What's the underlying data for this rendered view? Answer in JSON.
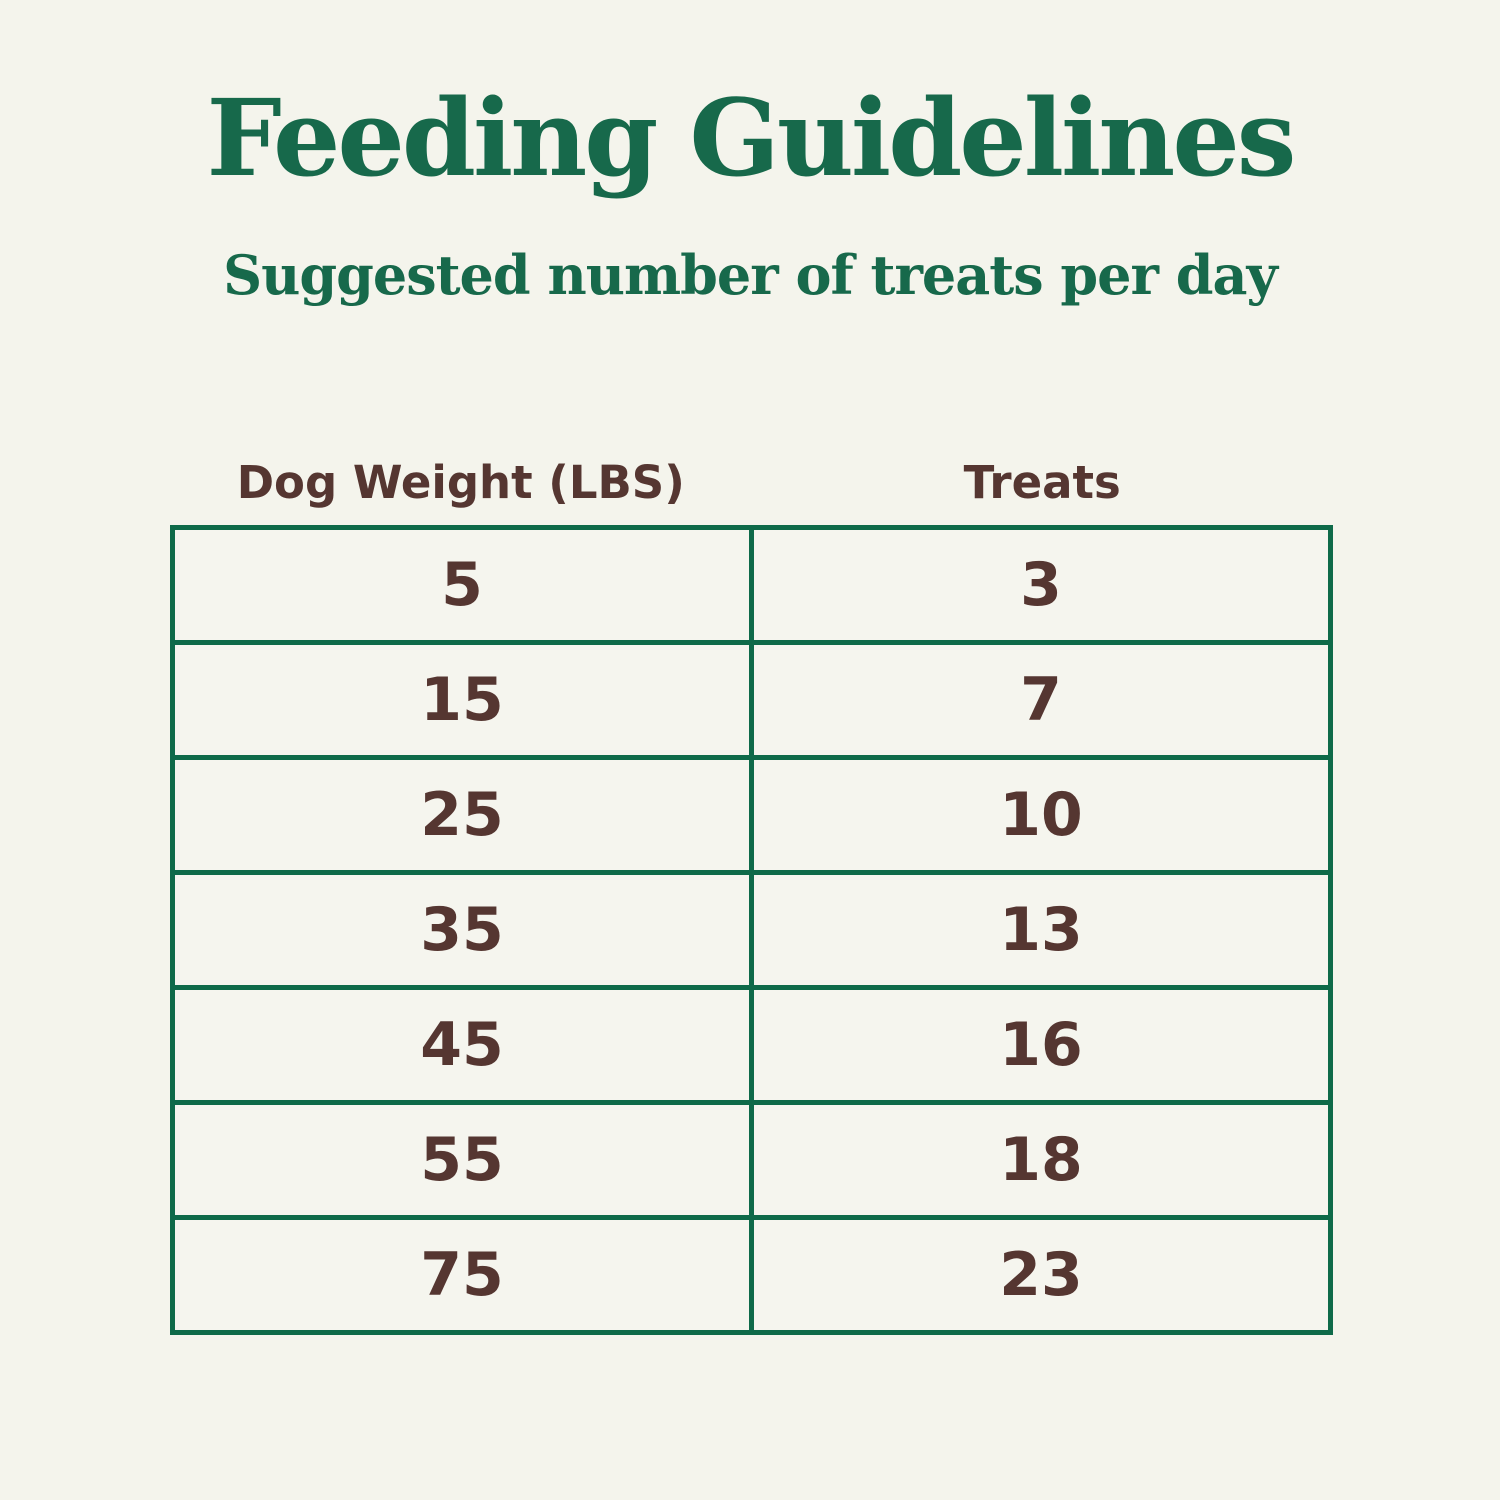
{
  "page": {
    "title": "Feeding Guidelines",
    "subtitle": "Suggested number of treats per day"
  },
  "table": {
    "columns": [
      "Dog Weight (LBS)",
      "Treats"
    ],
    "rows": [
      {
        "weight": "5",
        "treats": "3"
      },
      {
        "weight": "15",
        "treats": "7"
      },
      {
        "weight": "25",
        "treats": "10"
      },
      {
        "weight": "35",
        "treats": "13"
      },
      {
        "weight": "45",
        "treats": "16"
      },
      {
        "weight": "55",
        "treats": "18"
      },
      {
        "weight": "75",
        "treats": "23"
      }
    ]
  },
  "colors": {
    "background": "#f4f4ec",
    "title_green": "#17694b",
    "border_green": "#0e6a49",
    "text_brown": "#553631"
  },
  "chart_data": {
    "type": "table",
    "title": "Feeding Guidelines",
    "subtitle": "Suggested number of treats per day",
    "columns": [
      "Dog Weight (LBS)",
      "Treats"
    ],
    "rows": [
      [
        5,
        3
      ],
      [
        15,
        7
      ],
      [
        25,
        10
      ],
      [
        35,
        13
      ],
      [
        45,
        16
      ],
      [
        55,
        18
      ],
      [
        75,
        23
      ]
    ]
  }
}
